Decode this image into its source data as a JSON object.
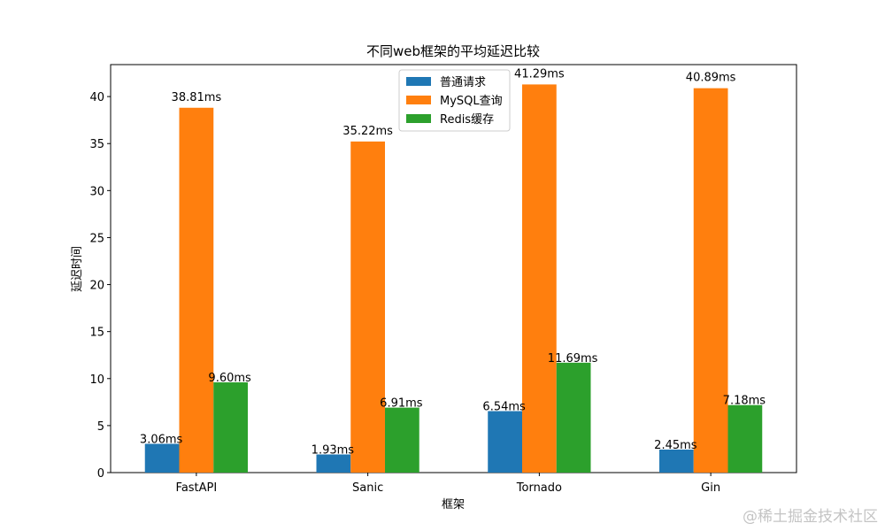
{
  "chart_data": {
    "type": "bar",
    "title": "不同web框架的平均延迟比较",
    "xlabel": "框架",
    "ylabel": "延迟时间",
    "categories": [
      "FastAPI",
      "Sanic",
      "Tornado",
      "Gin"
    ],
    "series": [
      {
        "name": "普通请求",
        "color": "#1f77b4",
        "values": [
          3.06,
          1.93,
          6.54,
          2.45
        ],
        "labels": [
          "3.06ms",
          "1.93ms",
          "6.54ms",
          "2.45ms"
        ]
      },
      {
        "name": "MySQL查询",
        "color": "#ff7f0e",
        "values": [
          38.81,
          35.22,
          41.29,
          40.89
        ],
        "labels": [
          "38.81ms",
          "35.22ms",
          "41.29ms",
          "40.89ms"
        ]
      },
      {
        "name": "Redis缓存",
        "color": "#2ca02c",
        "values": [
          9.6,
          6.91,
          11.69,
          7.18
        ],
        "labels": [
          "9.60ms",
          "6.91ms",
          "11.69ms",
          "7.18ms"
        ]
      }
    ],
    "yticks": [
      0,
      5,
      10,
      15,
      20,
      25,
      30,
      35,
      40
    ],
    "ylim": [
      0,
      43.4
    ],
    "grid": false,
    "legend_position": "top-center"
  },
  "watermark": "@稀土掘金技术社区"
}
